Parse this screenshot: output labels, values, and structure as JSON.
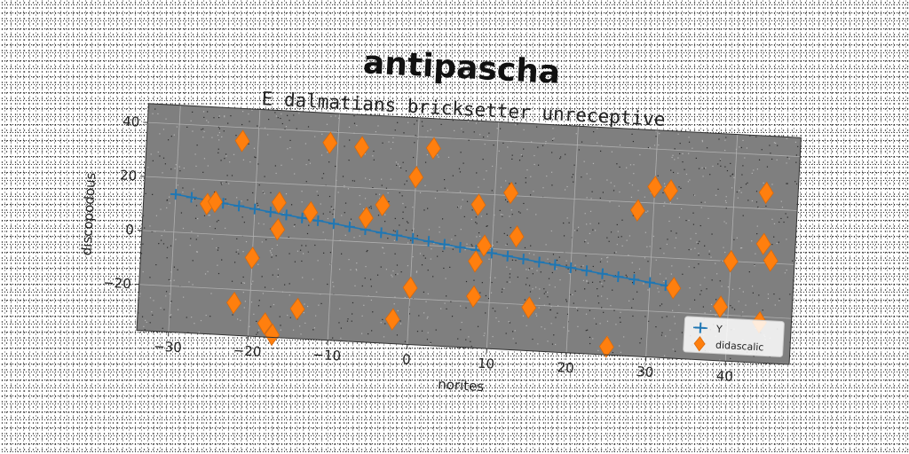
{
  "chart_data": {
    "type": "scatter",
    "title": "antipascha",
    "subtitle": "E dalmatians bricksetter unreceptive",
    "xlabel": "norites",
    "ylabel": "discopodous",
    "xlim": [
      -34,
      48
    ],
    "ylim": [
      -37,
      47
    ],
    "xticks": [
      -30,
      -20,
      -10,
      0,
      10,
      20,
      30,
      40
    ],
    "yticks": [
      -20,
      0,
      20,
      40
    ],
    "tick_labels_x": [
      "−30",
      "−20",
      "−10",
      "0",
      "10",
      "20",
      "30",
      "40"
    ],
    "tick_labels_y": [
      "−20",
      "0",
      "20",
      "40"
    ],
    "grid": true,
    "legend_position": "bottom-right",
    "rotation_deg": 3,
    "series": [
      {
        "name": "Y",
        "marker": "plus",
        "line": true,
        "color": "#1f77b4",
        "x": [
          -30,
          -28,
          -26,
          -24,
          -22,
          -20,
          -18,
          -16,
          -14,
          -12,
          -10,
          -8,
          -6,
          -4,
          -2,
          0,
          2,
          4,
          6,
          8,
          10,
          12,
          14,
          16,
          18,
          20,
          22,
          24,
          26,
          28,
          30,
          32
        ],
        "y": [
          14,
          13.2,
          12.4,
          11.6,
          10.9,
          10.1,
          9.3,
          8.5,
          7.7,
          7,
          6.2,
          5.4,
          4.6,
          3.8,
          3.1,
          2.3,
          1.5,
          0.7,
          -0.1,
          -0.8,
          -1.6,
          -2.4,
          -3.2,
          -4,
          -4.7,
          -5.5,
          -6.3,
          -7.1,
          -7.9,
          -8.6,
          -9.4,
          -10.2
        ]
      },
      {
        "name": "didascalic",
        "marker": "diamond",
        "line": false,
        "color": "#ff7f0e",
        "x": [
          -22,
          -11,
          -7,
          2,
          0,
          -4,
          8,
          12,
          30,
          32,
          44,
          -26,
          -25,
          -17,
          -13,
          -6,
          13,
          9,
          28,
          40,
          44,
          45,
          -17,
          -20,
          8,
          8,
          0,
          -2,
          15,
          25,
          33,
          39,
          44,
          -22,
          -14,
          -18,
          -17
        ],
        "y": [
          35,
          36,
          35,
          36,
          25,
          14,
          16,
          21,
          26,
          25,
          26,
          11,
          12,
          13,
          10,
          9,
          5,
          1,
          17,
          0,
          7,
          1,
          3,
          -8,
          -5,
          -18,
          -16,
          -28,
          -21,
          -34,
          -11,
          -17,
          -22,
          -25,
          -26,
          -32,
          -36
        ]
      }
    ]
  }
}
